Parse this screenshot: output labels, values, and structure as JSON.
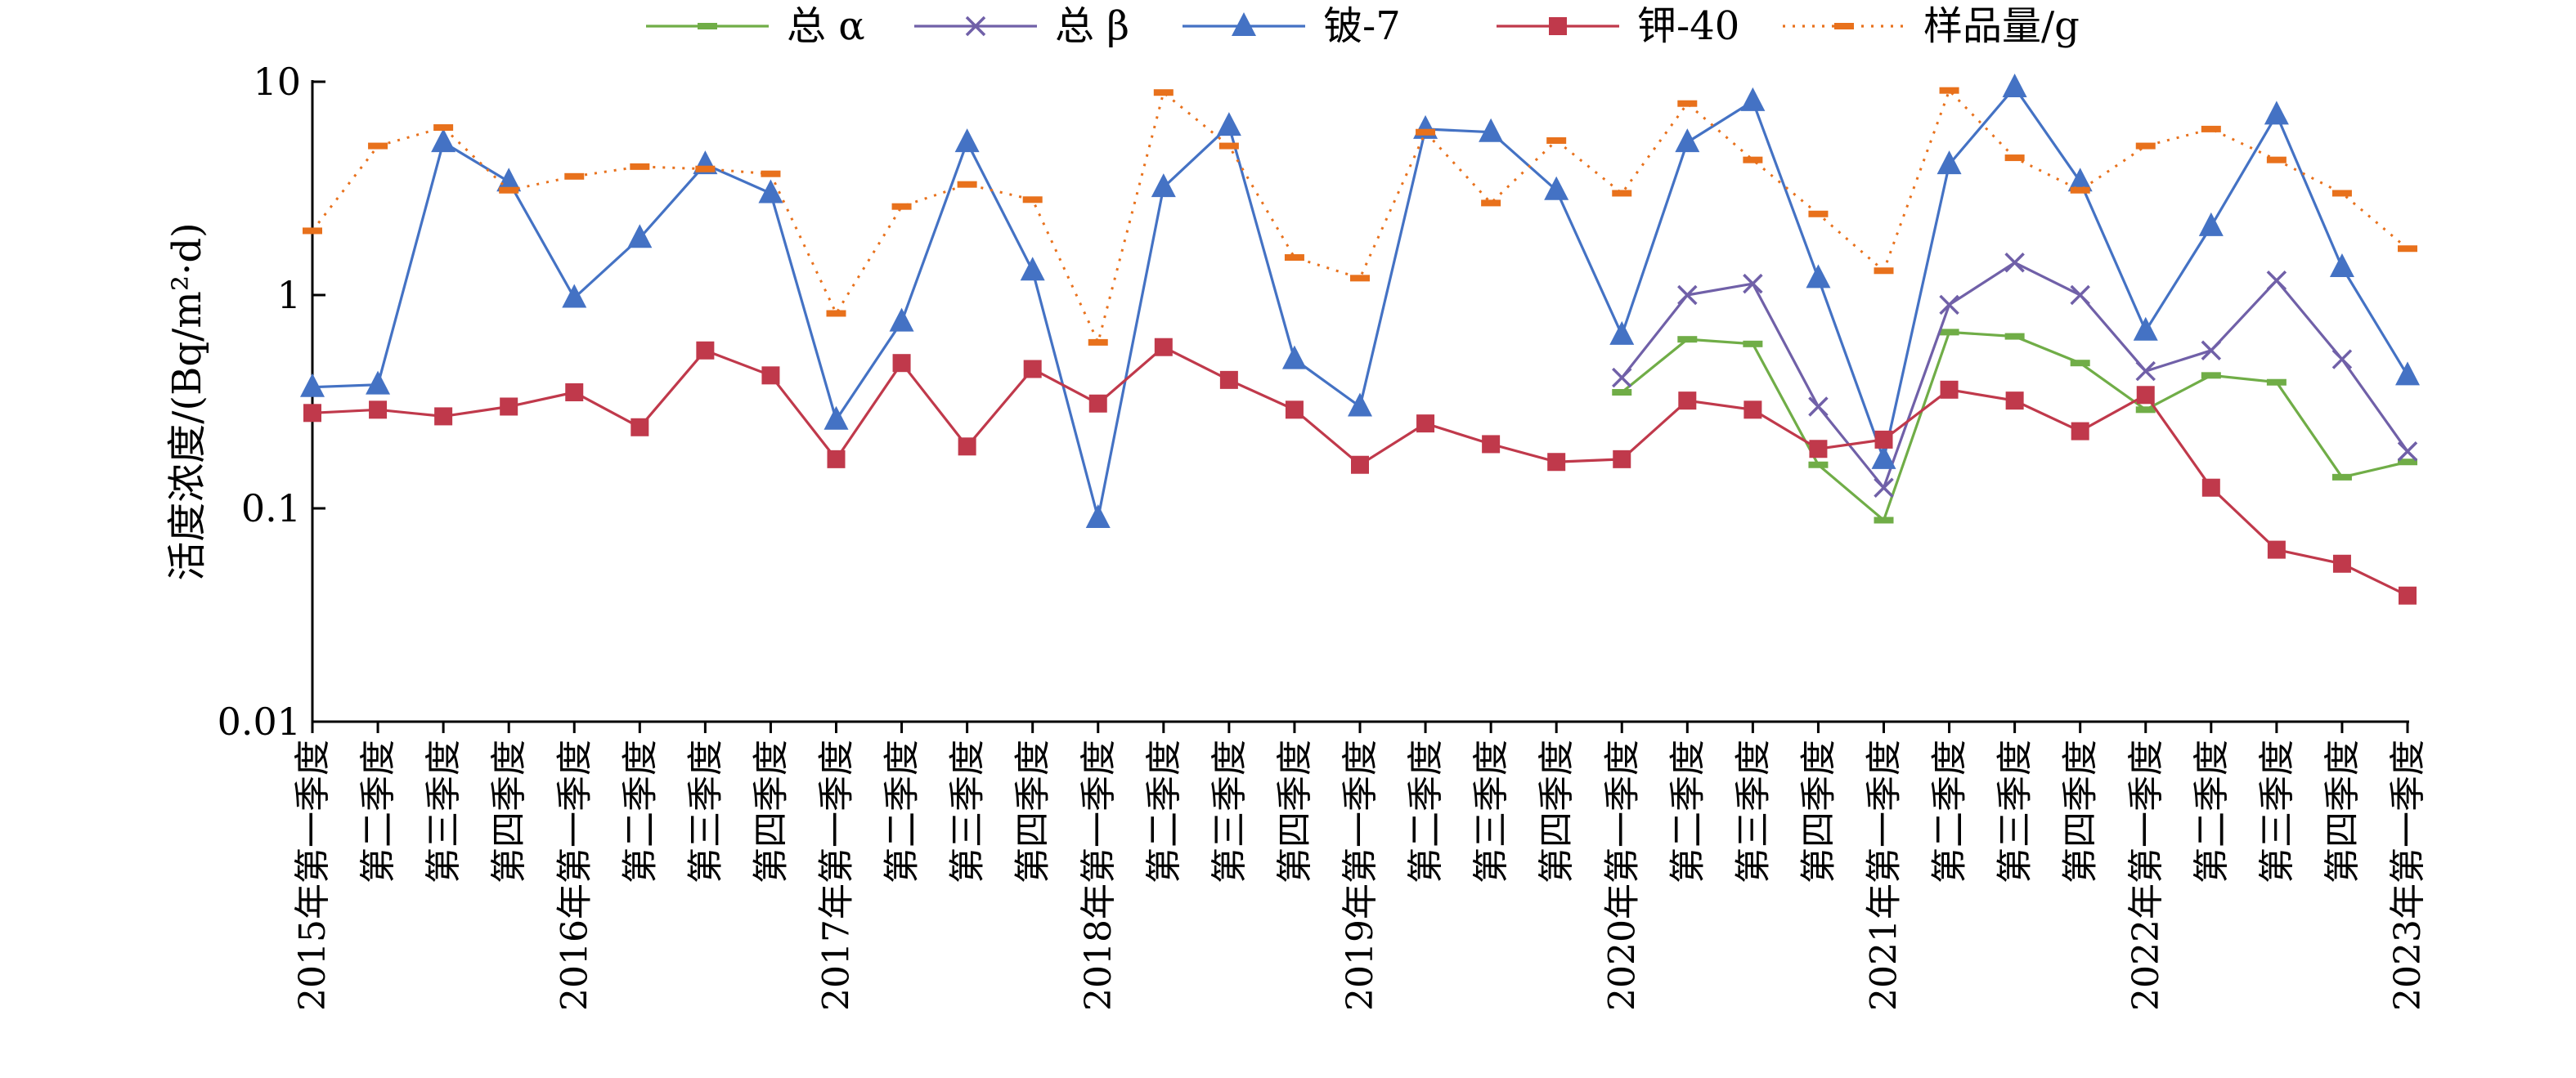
{
  "chart_data": {
    "type": "line",
    "title": "",
    "xlabel": "",
    "ylabel": "活度浓度/(Bq/m²·d)",
    "yscale": "log",
    "ylim": [
      0.01,
      10
    ],
    "y_ticks": [
      "0.01",
      "0.1",
      "1",
      "10"
    ],
    "grid": false,
    "legend_position": "top",
    "categories": [
      "2015年第一季度",
      "第二季度",
      "第三季度",
      "第四季度",
      "2016年第一季度",
      "第二季度",
      "第三季度",
      "第四季度",
      "2017年第一季度",
      "第二季度",
      "第三季度",
      "第四季度",
      "2018年第一季度",
      "第二季度",
      "第三季度",
      "第四季度",
      "2019年第一季度",
      "第二季度",
      "第三季度",
      "第四季度",
      "2020年第一季度",
      "第二季度",
      "第三季度",
      "第四季度",
      "2021年第一季度",
      "第二季度",
      "第三季度",
      "第四季度",
      "2022年第一季度",
      "第二季度",
      "第三季度",
      "第四季度",
      "2023年第一季度"
    ],
    "series": [
      {
        "name": "总 α",
        "color": "#70ad47",
        "marker": "dash",
        "line": "solid",
        "values": [
          null,
          null,
          null,
          null,
          null,
          null,
          null,
          null,
          null,
          null,
          null,
          null,
          null,
          null,
          null,
          null,
          null,
          null,
          null,
          null,
          0.35,
          0.62,
          0.59,
          0.16,
          0.088,
          0.67,
          0.64,
          0.48,
          0.29,
          0.42,
          0.39,
          0.14,
          0.165
        ]
      },
      {
        "name": "总 β",
        "color": "#7060a8",
        "marker": "x",
        "line": "solid",
        "values": [
          null,
          null,
          null,
          null,
          null,
          null,
          null,
          null,
          null,
          null,
          null,
          null,
          null,
          null,
          null,
          null,
          null,
          null,
          null,
          null,
          0.41,
          1.0,
          1.13,
          0.3,
          0.125,
          0.9,
          1.42,
          1.0,
          0.44,
          0.55,
          1.17,
          0.5,
          0.185
        ]
      },
      {
        "name": "铍-7",
        "color": "#4472c4",
        "marker": "triangle",
        "line": "solid",
        "values": [
          0.37,
          0.38,
          5.2,
          3.4,
          0.97,
          1.85,
          4.1,
          3.0,
          0.26,
          0.75,
          5.2,
          1.3,
          0.09,
          3.2,
          6.2,
          0.5,
          0.3,
          6.0,
          5.8,
          3.1,
          0.65,
          5.2,
          8.1,
          1.2,
          0.17,
          4.1,
          9.4,
          3.4,
          0.68,
          2.1,
          7.0,
          1.35,
          0.42
        ]
      },
      {
        "name": "钾-40",
        "color": "#c0394b",
        "marker": "square",
        "line": "solid",
        "values": [
          0.28,
          0.29,
          0.27,
          0.3,
          0.35,
          0.24,
          0.55,
          0.42,
          0.17,
          0.48,
          0.195,
          0.45,
          0.31,
          0.57,
          0.4,
          0.29,
          0.16,
          0.25,
          0.2,
          0.165,
          0.17,
          0.32,
          0.29,
          0.19,
          0.21,
          0.36,
          0.32,
          0.23,
          0.34,
          0.125,
          0.064,
          0.055,
          0.039
        ]
      },
      {
        "name": "样品量/g",
        "color": "#e8711c",
        "marker": "dash",
        "line": "dotted",
        "values": [
          2.0,
          5.0,
          6.1,
          3.1,
          3.6,
          4.0,
          3.9,
          3.7,
          0.82,
          2.6,
          3.3,
          2.8,
          0.6,
          8.9,
          5.0,
          1.5,
          1.2,
          5.8,
          2.7,
          5.3,
          3.0,
          7.9,
          4.3,
          2.4,
          1.3,
          9.1,
          4.4,
          3.1,
          5.0,
          6.0,
          4.3,
          3.0,
          1.65
        ]
      }
    ]
  }
}
